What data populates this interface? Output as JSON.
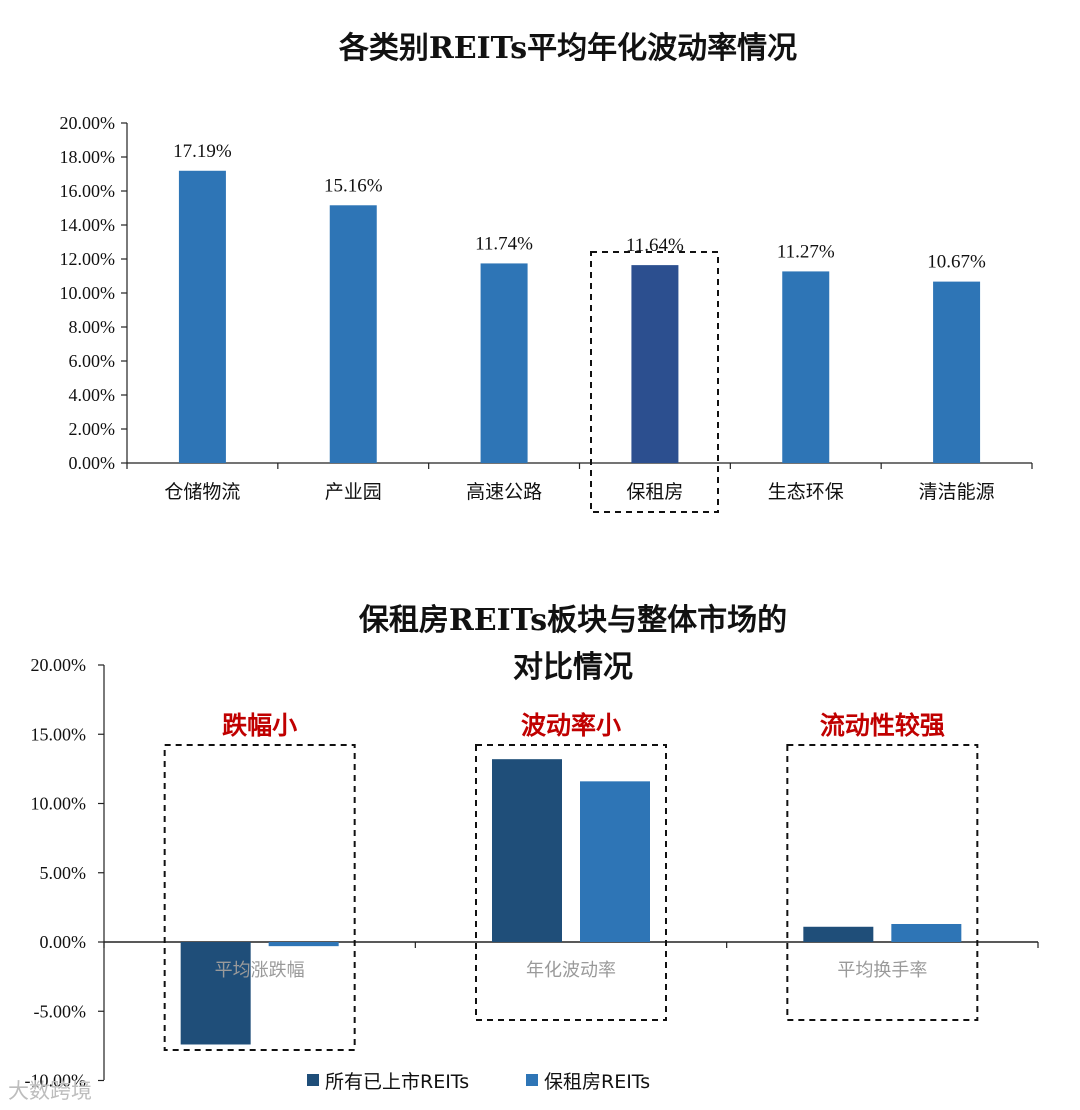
{
  "chart_data": [
    {
      "type": "bar",
      "title": "各类别REITs平均年化波动率情况",
      "categories": [
        "仓储物流",
        "产业园",
        "高速公路",
        "保租房",
        "生态环保",
        "清洁能源"
      ],
      "values": [
        17.19,
        15.16,
        11.74,
        11.64,
        11.27,
        10.67
      ],
      "value_labels": [
        "17.19%",
        "15.16%",
        "11.74%",
        "11.64%",
        "11.27%",
        "10.67%"
      ],
      "highlight_category": "保租房",
      "ylim": [
        0,
        20
      ],
      "yticks": [
        "0.00%",
        "2.00%",
        "4.00%",
        "6.00%",
        "8.00%",
        "10.00%",
        "12.00%",
        "14.00%",
        "16.00%",
        "18.00%",
        "20.00%"
      ],
      "colors": {
        "bar": "#2e75b6",
        "highlight": "#2c4f8f"
      },
      "grid": false
    },
    {
      "type": "bar",
      "title_lines": [
        "保租房REITs板块与整体市场的",
        "对比情况"
      ],
      "categories": [
        "平均涨跌幅",
        "年化波动率",
        "平均换手率"
      ],
      "group_notes": [
        "跌幅小",
        "波动率小",
        "流动性较强"
      ],
      "series": [
        {
          "name": "所有已上市REITs",
          "values": [
            -7.4,
            13.2,
            1.1
          ],
          "color": "#1f4e79"
        },
        {
          "name": "保租房REITs",
          "values": [
            -0.3,
            11.6,
            1.3
          ],
          "color": "#2e75b6"
        }
      ],
      "ylim": [
        -10,
        20
      ],
      "yticks": [
        "-10.00%",
        "-5.00%",
        "0.00%",
        "5.00%",
        "10.00%",
        "15.00%",
        "20.00%"
      ],
      "legend_position": "bottom",
      "grid": false
    }
  ],
  "watermark": "大数跨境"
}
